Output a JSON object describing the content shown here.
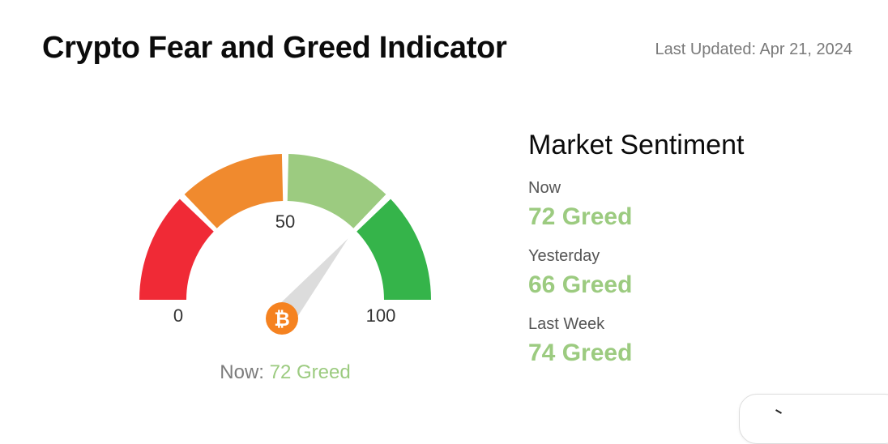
{
  "header": {
    "title": "Crypto Fear and Greed Indicator",
    "last_updated": "Last Updated: Apr 21, 2024"
  },
  "gauge": {
    "min_label": "0",
    "mid_label": "50",
    "max_label": "100",
    "value": 72,
    "max": 100,
    "caption_prefix": "Now: ",
    "caption_value": "72 Greed",
    "center_icon": "bitcoin-icon",
    "segments": [
      {
        "from": 0,
        "to": 25,
        "color": "#f02a36"
      },
      {
        "from": 25,
        "to": 50,
        "color": "#f08a2e"
      },
      {
        "from": 50,
        "to": 75,
        "color": "#9ccb80"
      },
      {
        "from": 75,
        "to": 100,
        "color": "#35b44a"
      }
    ],
    "needle_color": "#dcdcdc",
    "icon_color": "#f58220"
  },
  "sentiment": {
    "title": "Market Sentiment",
    "rows": [
      {
        "label": "Now",
        "value": "72 Greed"
      },
      {
        "label": "Yesterday",
        "value": "66 Greed"
      },
      {
        "label": "Last Week",
        "value": "74 Greed"
      }
    ],
    "value_color": "#9ccb80"
  }
}
